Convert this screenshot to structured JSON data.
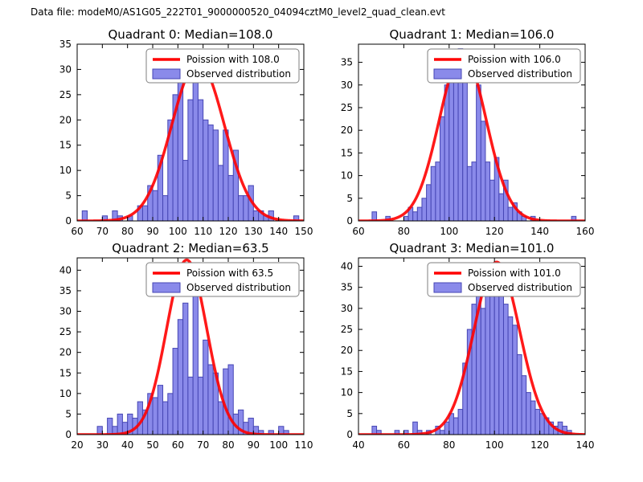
{
  "figure": {
    "title": "Data file: modeM0/AS1G05_222T01_9000000520_04094cztM0_level2_quad_clean.evt"
  },
  "colors": {
    "curve": "#ff0000",
    "bar_fill": "#8a8aea",
    "bar_edge": "#4646b4",
    "axes": "#000000",
    "legend_border": "#7f7f7f",
    "background": "#ffffff"
  },
  "chart_data": [
    {
      "id": "quadrant-0",
      "type": "bar",
      "title": "Quadrant 0: Median=108.0",
      "median": 108.0,
      "legend": [
        {
          "label": "Poission with 108.0",
          "sample": "line"
        },
        {
          "label": "Observed distribution",
          "sample": "patch"
        }
      ],
      "xlim": [
        60,
        150
      ],
      "ylim": [
        0,
        35
      ],
      "xticks": [
        60,
        70,
        80,
        90,
        100,
        110,
        120,
        130,
        140,
        150
      ],
      "yticks": [
        0,
        5,
        10,
        15,
        20,
        25,
        30,
        35
      ],
      "bin_width": 2,
      "bars": {
        "x": [
          62,
          70,
          74,
          76,
          80,
          84,
          86,
          88,
          90,
          92,
          94,
          96,
          98,
          100,
          102,
          104,
          106,
          108,
          110,
          112,
          114,
          116,
          118,
          120,
          122,
          124,
          126,
          128,
          130,
          132,
          134,
          136,
          146
        ],
        "counts": [
          2,
          1,
          2,
          1,
          1,
          3,
          3,
          7,
          6,
          13,
          5,
          20,
          25,
          34,
          12,
          24,
          33,
          24,
          20,
          19,
          18,
          11,
          18,
          9,
          14,
          5,
          5,
          7,
          2,
          2,
          1,
          2,
          1
        ]
      },
      "curve": {
        "model": "poisson",
        "mean": 108.0,
        "peak": 31.5
      }
    },
    {
      "id": "quadrant-1",
      "type": "bar",
      "title": "Quadrant 1: Median=106.0",
      "median": 106.0,
      "legend": [
        {
          "label": "Poission with 106.0",
          "sample": "line"
        },
        {
          "label": "Observed distribution",
          "sample": "patch"
        }
      ],
      "xlim": [
        60,
        160
      ],
      "ylim": [
        0,
        39
      ],
      "xticks": [
        60,
        80,
        100,
        120,
        140,
        160
      ],
      "yticks": [
        0,
        5,
        10,
        15,
        20,
        25,
        30,
        35
      ],
      "bin_width": 2,
      "bars": {
        "x": [
          66,
          72,
          80,
          82,
          84,
          86,
          88,
          90,
          92,
          94,
          96,
          98,
          100,
          102,
          104,
          106,
          108,
          110,
          112,
          114,
          116,
          118,
          120,
          122,
          124,
          126,
          128,
          130,
          132,
          136,
          154
        ],
        "counts": [
          2,
          1,
          1,
          3,
          2,
          3,
          5,
          8,
          12,
          13,
          23,
          30,
          37,
          31,
          38,
          33,
          12,
          13,
          30,
          22,
          13,
          9,
          14,
          6,
          9,
          3,
          4,
          2,
          1,
          1,
          1
        ]
      },
      "curve": {
        "model": "poisson",
        "mean": 106.0,
        "peak": 37.0
      }
    },
    {
      "id": "quadrant-2",
      "type": "bar",
      "title": "Quadrant 2: Median=63.5",
      "median": 63.5,
      "legend": [
        {
          "label": "Poission with 63.5",
          "sample": "line"
        },
        {
          "label": "Observed distribution",
          "sample": "patch"
        }
      ],
      "xlim": [
        20,
        110
      ],
      "ylim": [
        0,
        43
      ],
      "xticks": [
        20,
        30,
        40,
        50,
        60,
        70,
        80,
        90,
        100,
        110
      ],
      "yticks": [
        0,
        5,
        10,
        15,
        20,
        25,
        30,
        35,
        40
      ],
      "bin_width": 2,
      "bars": {
        "x": [
          28,
          32,
          34,
          36,
          38,
          40,
          42,
          44,
          46,
          48,
          50,
          52,
          54,
          56,
          58,
          60,
          62,
          64,
          66,
          68,
          70,
          72,
          74,
          76,
          78,
          80,
          82,
          84,
          86,
          88,
          90,
          92,
          96,
          100,
          102
        ],
        "counts": [
          2,
          4,
          2,
          5,
          3,
          5,
          4,
          8,
          6,
          10,
          9,
          12,
          8,
          10,
          21,
          28,
          32,
          14,
          41,
          14,
          23,
          17,
          15,
          8,
          16,
          17,
          5,
          6,
          3,
          4,
          2,
          1,
          1,
          2,
          1
        ]
      },
      "curve": {
        "model": "poisson",
        "mean": 63.5,
        "peak": 42.5
      }
    },
    {
      "id": "quadrant-3",
      "type": "bar",
      "title": "Quadrant 3: Median=101.0",
      "median": 101.0,
      "legend": [
        {
          "label": "Poission with 101.0",
          "sample": "line"
        },
        {
          "label": "Observed distribution",
          "sample": "patch"
        }
      ],
      "xlim": [
        40,
        140
      ],
      "ylim": [
        0,
        42
      ],
      "xticks": [
        40,
        60,
        80,
        100,
        120,
        140
      ],
      "yticks": [
        0,
        5,
        10,
        15,
        20,
        25,
        30,
        35,
        40
      ],
      "bin_width": 2,
      "bars": {
        "x": [
          46,
          48,
          56,
          60,
          64,
          66,
          70,
          74,
          76,
          78,
          80,
          82,
          84,
          86,
          88,
          90,
          92,
          94,
          96,
          98,
          100,
          102,
          104,
          106,
          108,
          110,
          112,
          114,
          116,
          118,
          120,
          122,
          124,
          126,
          128,
          130,
          132
        ],
        "counts": [
          2,
          1,
          1,
          1,
          3,
          1,
          1,
          2,
          1,
          3,
          5,
          4,
          6,
          17,
          25,
          31,
          37,
          30,
          39,
          36,
          40,
          36,
          31,
          28,
          26,
          19,
          14,
          10,
          8,
          6,
          5,
          4,
          3,
          2,
          3,
          2,
          1
        ]
      },
      "curve": {
        "model": "poisson",
        "mean": 101.0,
        "peak": 41.0
      }
    }
  ]
}
